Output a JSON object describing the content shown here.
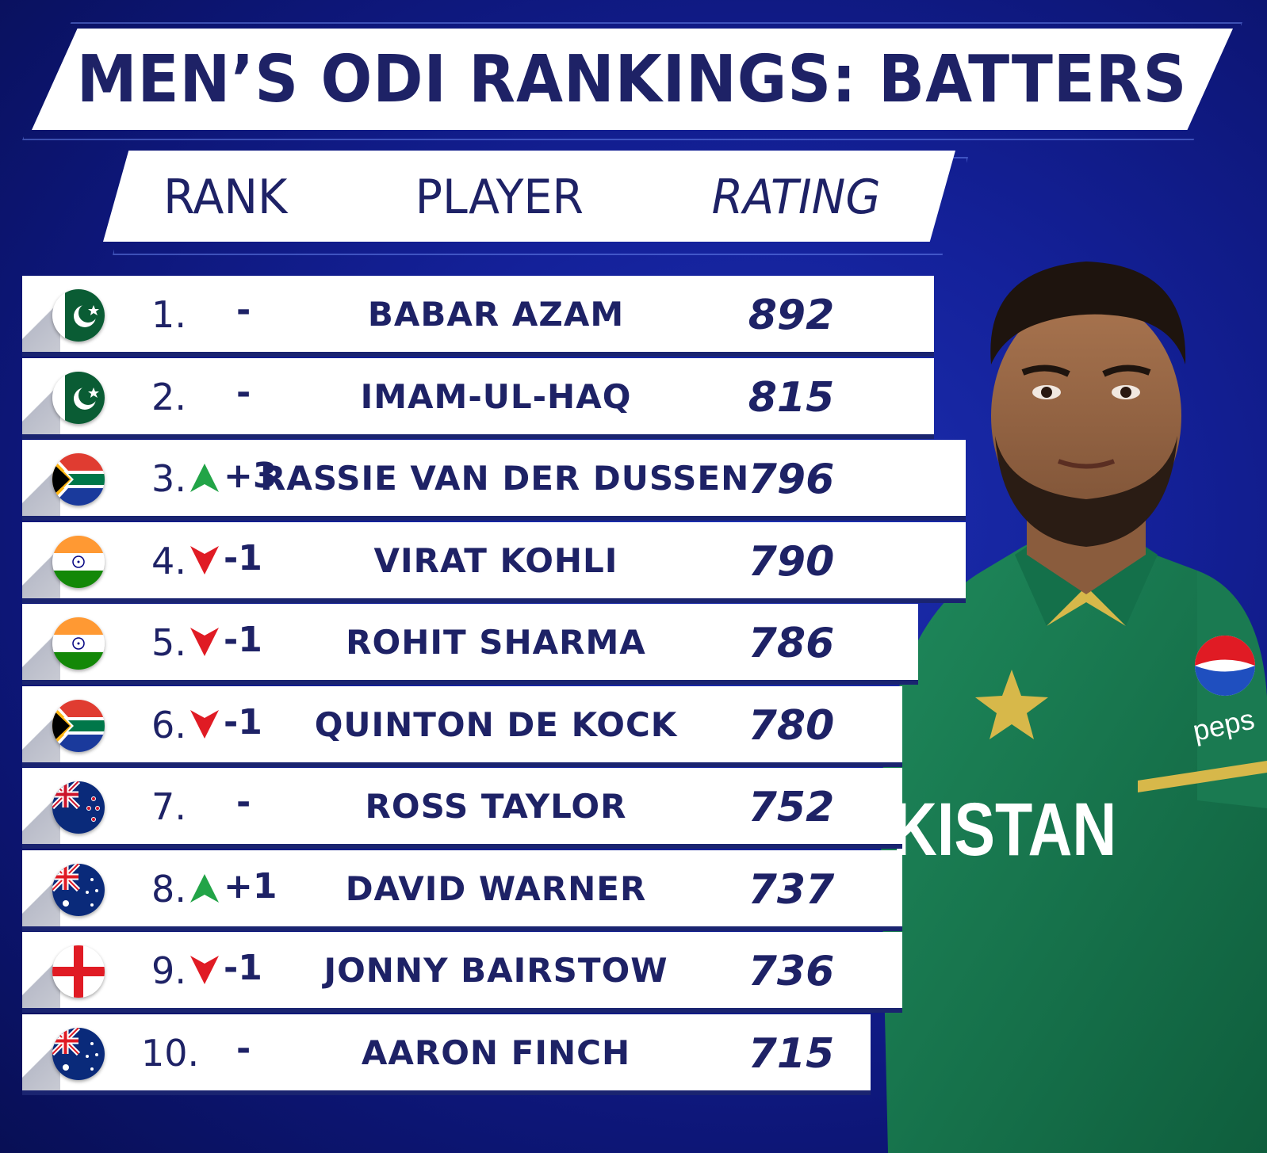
{
  "title": "MEN’S ODI RANKINGS: BATTERS",
  "columns": {
    "rank": "RANK",
    "player": "PLAYER",
    "rating": "RATING"
  },
  "colors": {
    "navy": "#1e2266",
    "up": "#22a447",
    "down": "#e01b24",
    "background": "#14219a"
  },
  "photo": {
    "shirt_text": "KISTAN",
    "sponsor": "peps"
  },
  "rows": [
    {
      "rank": "1.",
      "move": "-",
      "direction": "none",
      "player": "BABAR AZAM",
      "rating": "892",
      "flag": "pakistan-flag-icon"
    },
    {
      "rank": "2.",
      "move": "-",
      "direction": "none",
      "player": "IMAM-UL-HAQ",
      "rating": "815",
      "flag": "pakistan-flag-icon"
    },
    {
      "rank": "3.",
      "move": "+3",
      "direction": "up",
      "player": "RASSIE VAN DER DUSSEN",
      "rating": "796",
      "flag": "south-africa-flag-icon"
    },
    {
      "rank": "4.",
      "move": "-1",
      "direction": "down",
      "player": "VIRAT KOHLI",
      "rating": "790",
      "flag": "india-flag-icon"
    },
    {
      "rank": "5.",
      "move": "-1",
      "direction": "down",
      "player": "ROHIT SHARMA",
      "rating": "786",
      "flag": "india-flag-icon"
    },
    {
      "rank": "6.",
      "move": "-1",
      "direction": "down",
      "player": "QUINTON DE KOCK",
      "rating": "780",
      "flag": "south-africa-flag-icon"
    },
    {
      "rank": "7.",
      "move": "-",
      "direction": "none",
      "player": "ROSS TAYLOR",
      "rating": "752",
      "flag": "new-zealand-flag-icon"
    },
    {
      "rank": "8.",
      "move": "+1",
      "direction": "up",
      "player": "DAVID WARNER",
      "rating": "737",
      "flag": "australia-flag-icon"
    },
    {
      "rank": "9.",
      "move": "-1",
      "direction": "down",
      "player": "JONNY BAIRSTOW",
      "rating": "736",
      "flag": "england-flag-icon"
    },
    {
      "rank": "10.",
      "move": "-",
      "direction": "none",
      "player": "AARON FINCH",
      "rating": "715",
      "flag": "australia-flag-icon"
    }
  ]
}
